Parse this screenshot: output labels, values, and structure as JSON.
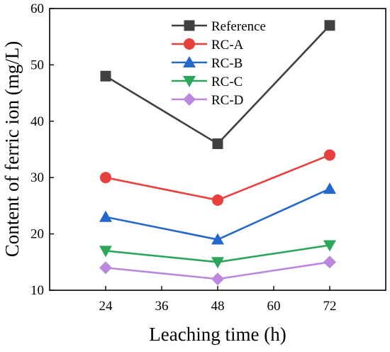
{
  "chart_data": {
    "type": "line",
    "title": "",
    "xlabel": "Leaching time (h)",
    "ylabel": "Content of ferric ion (mg/L)",
    "xlim": [
      12,
      84
    ],
    "ylim": [
      10,
      60
    ],
    "xticks": [
      24,
      36,
      48,
      60,
      72
    ],
    "yticks": [
      10,
      20,
      30,
      40,
      50,
      60
    ],
    "grid": false,
    "legend_position": "top-center",
    "x": [
      24,
      48,
      72
    ],
    "series": [
      {
        "name": "Reference",
        "values": [
          48,
          36,
          57
        ],
        "color": "#404040",
        "marker": "square"
      },
      {
        "name": "RC-A",
        "values": [
          30,
          26,
          34
        ],
        "color": "#e8403d",
        "marker": "circle"
      },
      {
        "name": "RC-B",
        "values": [
          23,
          19,
          28
        ],
        "color": "#2468cc",
        "marker": "triangle-up"
      },
      {
        "name": "RC-C",
        "values": [
          17,
          15,
          18
        ],
        "color": "#2ca65a",
        "marker": "triangle-down"
      },
      {
        "name": "RC-D",
        "values": [
          14,
          12,
          15
        ],
        "color": "#bb88dd",
        "marker": "diamond"
      }
    ]
  }
}
